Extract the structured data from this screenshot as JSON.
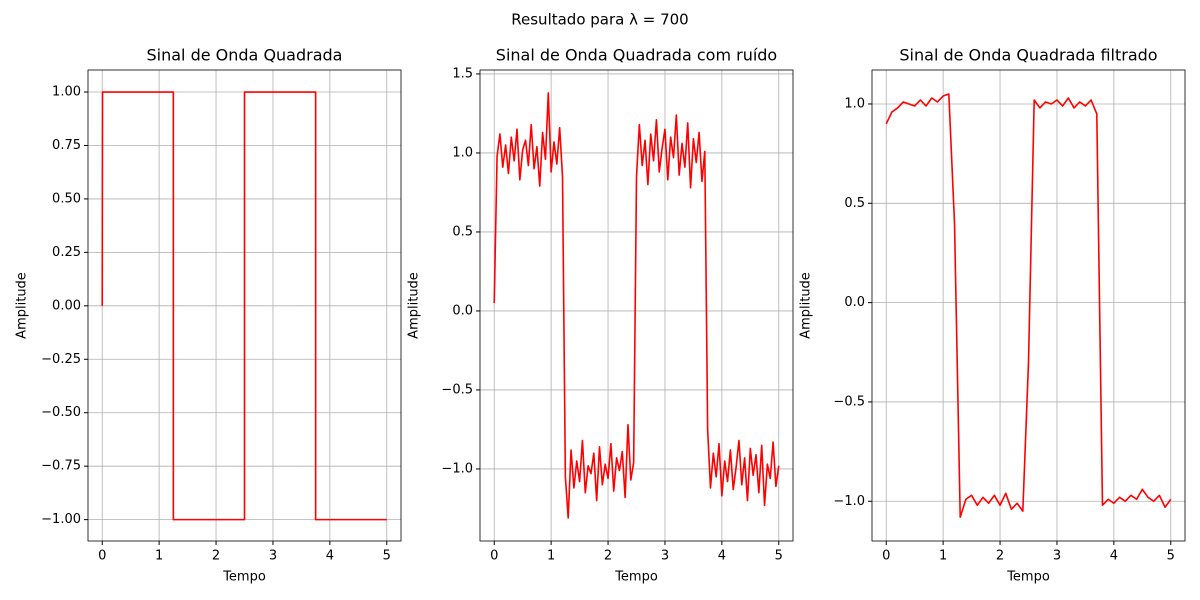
{
  "title": "Resultado para λ = 700",
  "chart_data": [
    {
      "type": "line",
      "title": "Sinal de Onda Quadrada",
      "xlabel": "Tempo",
      "ylabel": "Amplitude",
      "color": "#ff0000",
      "grid": true,
      "x": [
        0,
        0.005,
        1.25,
        1.25,
        2.5,
        2.5,
        3.75,
        3.75,
        5
      ],
      "values": [
        0,
        1,
        1,
        -1,
        -1,
        1,
        1,
        -1,
        -1
      ],
      "xlim": [
        -0.25,
        5.25
      ],
      "xticks": [
        0,
        1,
        2,
        3,
        4,
        5
      ],
      "ylim": [
        -1.1,
        1.103
      ],
      "yticks": [
        {
          "value": -1,
          "label": "−1.00"
        },
        {
          "value": -0.75,
          "label": "−0.75"
        },
        {
          "value": -0.5,
          "label": "−0.50"
        },
        {
          "value": -0.25,
          "label": "−0.25"
        },
        {
          "value": 0,
          "label": "0.00"
        },
        {
          "value": 0.25,
          "label": "0.25"
        },
        {
          "value": 0.5,
          "label": "0.50"
        },
        {
          "value": 0.75,
          "label": "0.75"
        },
        {
          "value": 1,
          "label": "1.00"
        }
      ]
    },
    {
      "type": "line",
      "title": "Sinal de Onda Quadrada com ruído",
      "xlabel": "Tempo",
      "ylabel": "Amplitude",
      "color": "#ff0000",
      "grid": true,
      "x": [
        0,
        0.05,
        0.1,
        0.15,
        0.2,
        0.25,
        0.3,
        0.35,
        0.4,
        0.45,
        0.5,
        0.55,
        0.6,
        0.65,
        0.7,
        0.75,
        0.8,
        0.85,
        0.9,
        0.95,
        1,
        1.05,
        1.1,
        1.15,
        1.2,
        1.25,
        1.3,
        1.35,
        1.4,
        1.45,
        1.5,
        1.55,
        1.6,
        1.65,
        1.7,
        1.75,
        1.8,
        1.85,
        1.9,
        1.95,
        2,
        2.05,
        2.1,
        2.15,
        2.2,
        2.25,
        2.3,
        2.35,
        2.4,
        2.45,
        2.5,
        2.55,
        2.6,
        2.65,
        2.7,
        2.75,
        2.8,
        2.85,
        2.9,
        2.95,
        3,
        3.05,
        3.1,
        3.15,
        3.2,
        3.25,
        3.3,
        3.35,
        3.4,
        3.45,
        3.5,
        3.55,
        3.6,
        3.65,
        3.7,
        3.75,
        3.8,
        3.85,
        3.9,
        3.95,
        4,
        4.05,
        4.1,
        4.15,
        4.2,
        4.25,
        4.3,
        4.35,
        4.4,
        4.45,
        4.5,
        4.55,
        4.6,
        4.65,
        4.7,
        4.75,
        4.8,
        4.85,
        4.9,
        4.95,
        5
      ],
      "values": [
        0.05,
        0.98,
        1.12,
        0.91,
        1.05,
        0.87,
        1.1,
        0.95,
        1.15,
        0.83,
        1.02,
        1.08,
        0.92,
        1.18,
        0.9,
        1.04,
        0.79,
        1.13,
        0.96,
        1.38,
        0.88,
        1.07,
        0.93,
        1.16,
        0.85,
        -1.05,
        -1.31,
        -0.88,
        -1.12,
        -0.95,
        -1.08,
        -0.82,
        -1.15,
        -0.98,
        -1.03,
        -0.9,
        -1.2,
        -0.86,
        -1.1,
        -0.97,
        -1.06,
        -0.84,
        -1.14,
        -0.93,
        -1.01,
        -0.89,
        -1.18,
        -0.72,
        -1.07,
        -0.96,
        0.85,
        1.18,
        0.92,
        1.08,
        0.8,
        1.12,
        0.95,
        1.21,
        0.88,
        1.03,
        1.15,
        0.83,
        1.1,
        0.97,
        1.24,
        0.86,
        1.06,
        0.91,
        1.19,
        0.78,
        1.09,
        0.94,
        1.13,
        0.82,
        1.01,
        -0.75,
        -1.12,
        -0.9,
        -1.05,
        -0.84,
        -1.17,
        -0.95,
        -1.08,
        -0.88,
        -1.13,
        -0.99,
        -0.82,
        -1.1,
        -0.93,
        -1.2,
        -0.87,
        -1.04,
        -0.91,
        -1.15,
        -0.85,
        -1.23,
        -0.97,
        -1.06,
        -0.83,
        -1.11,
        -0.98
      ],
      "xlim": [
        -0.25,
        5.25
      ],
      "xticks": [
        0,
        1,
        2,
        3,
        4,
        5
      ],
      "ylim": [
        -1.456,
        1.525
      ],
      "yticks": [
        {
          "value": -1,
          "label": "−1.0"
        },
        {
          "value": -0.5,
          "label": "−0.5"
        },
        {
          "value": 0,
          "label": "0.0"
        },
        {
          "value": 0.5,
          "label": "0.5"
        },
        {
          "value": 1,
          "label": "1.0"
        },
        {
          "value": 1.5,
          "label": "1.5"
        }
      ]
    },
    {
      "type": "line",
      "title": "Sinal de Onda Quadrada filtrado",
      "xlabel": "Tempo",
      "ylabel": "Amplitude",
      "color": "#ff0000",
      "grid": true,
      "x": [
        0,
        0.1,
        0.2,
        0.3,
        0.4,
        0.5,
        0.6,
        0.7,
        0.8,
        0.9,
        1,
        1.1,
        1.2,
        1.3,
        1.4,
        1.5,
        1.6,
        1.7,
        1.8,
        1.9,
        2,
        2.1,
        2.2,
        2.3,
        2.4,
        2.5,
        2.6,
        2.7,
        2.8,
        2.9,
        3,
        3.1,
        3.2,
        3.3,
        3.4,
        3.5,
        3.6,
        3.7,
        3.8,
        3.9,
        4,
        4.1,
        4.2,
        4.3,
        4.4,
        4.5,
        4.6,
        4.7,
        4.8,
        4.9,
        5
      ],
      "values": [
        0.9,
        0.96,
        0.98,
        1.01,
        1.0,
        0.99,
        1.02,
        0.99,
        1.03,
        1.01,
        1.04,
        1.05,
        0.4,
        -1.08,
        -0.99,
        -0.97,
        -1.02,
        -0.98,
        -1.01,
        -0.97,
        -1.02,
        -0.96,
        -1.04,
        -1.01,
        -1.05,
        -0.3,
        1.02,
        0.98,
        1.01,
        1.0,
        1.02,
        0.99,
        1.03,
        0.98,
        1.01,
        0.99,
        1.02,
        0.95,
        -1.02,
        -0.99,
        -1.01,
        -0.98,
        -1.0,
        -0.97,
        -0.99,
        -0.94,
        -0.98,
        -1.0,
        -0.97,
        -1.03,
        -0.99
      ],
      "xlim": [
        -0.25,
        5.25
      ],
      "xticks": [
        0,
        1,
        2,
        3,
        4,
        5
      ],
      "ylim": [
        -1.2,
        1.171
      ],
      "yticks": [
        {
          "value": -1,
          "label": "−1.0"
        },
        {
          "value": -0.5,
          "label": "−0.5"
        },
        {
          "value": 0,
          "label": "0.0"
        },
        {
          "value": 0.5,
          "label": "0.5"
        },
        {
          "value": 1,
          "label": "1.0"
        }
      ]
    }
  ]
}
